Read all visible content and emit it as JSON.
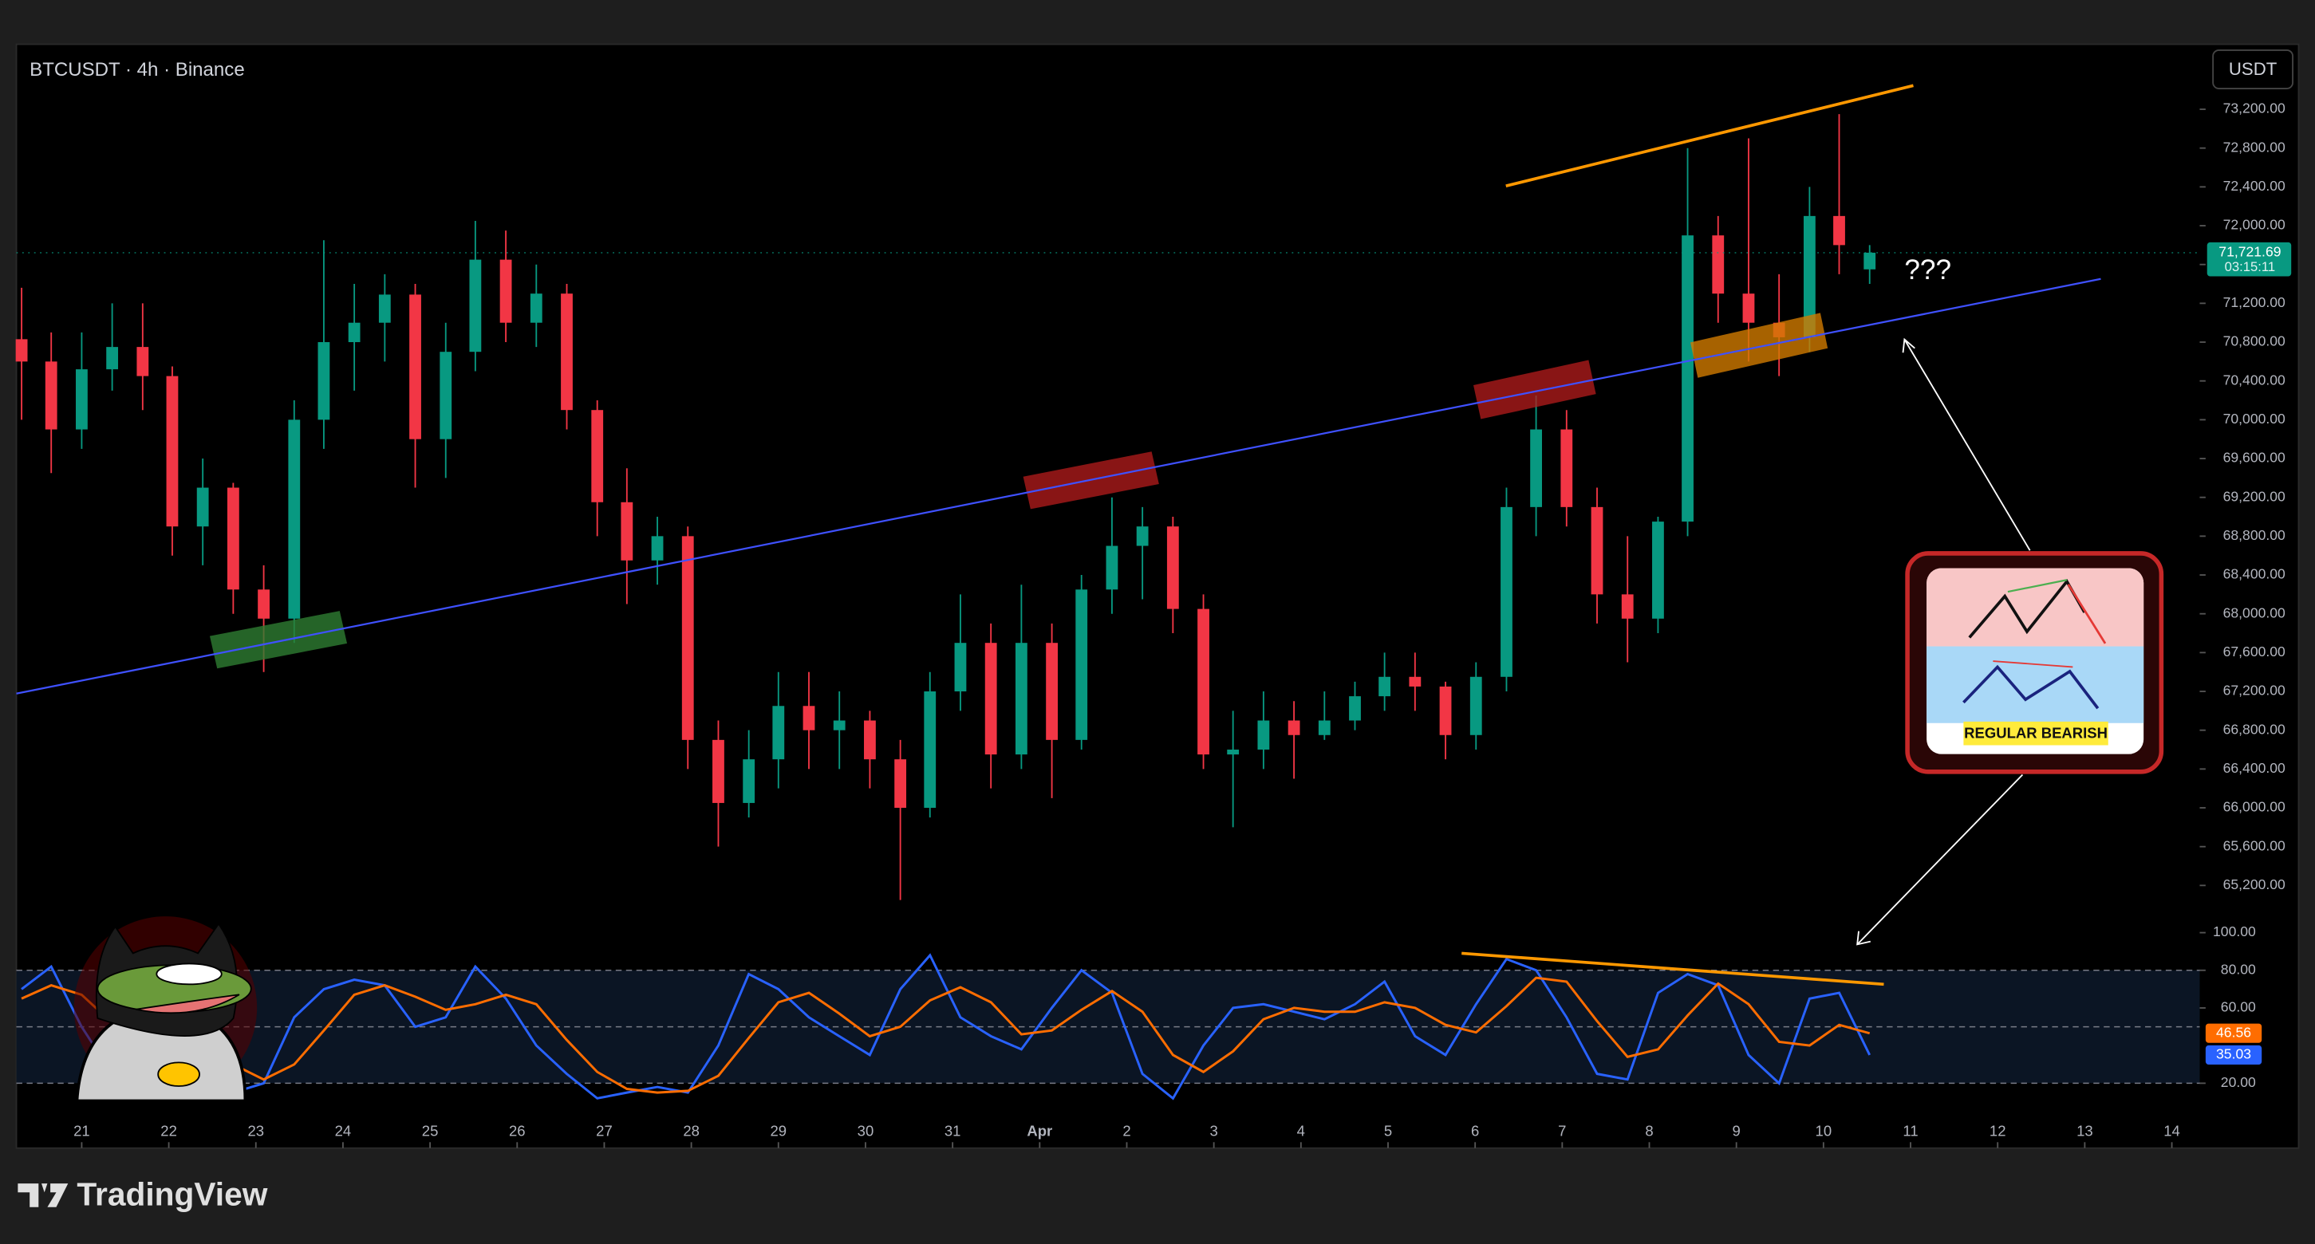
{
  "chart_data": [
    {
      "type": "candlestick",
      "title": "BTCUSDT · 4h · Binance",
      "currency": "USDT",
      "annotation": "???",
      "badge": "REGULAR BEARISH",
      "countdown": "03:15:11",
      "last_price": {
        "value": 71721.69,
        "label": "71,721.69"
      },
      "up_color": "#089981",
      "down_color": "#f23645",
      "x": [
        -0.69,
        -0.35,
        0.0,
        0.35,
        0.7,
        1.04,
        1.39,
        1.74,
        2.09,
        2.44,
        2.78,
        3.13,
        3.48,
        3.83,
        4.18,
        4.52,
        4.87,
        5.22,
        5.57,
        5.92,
        6.26,
        6.61,
        6.96,
        7.31,
        7.66,
        8.0,
        8.35,
        8.7,
        9.05,
        9.4,
        9.74,
        10.09,
        10.44,
        10.79,
        11.14,
        11.48,
        11.83,
        12.18,
        12.53,
        12.88,
        13.22,
        13.57,
        13.92,
        14.27,
        14.62,
        14.96,
        15.31,
        15.66,
        16.01,
        16.36,
        16.7,
        17.05,
        17.4,
        17.75,
        18.1,
        18.44,
        18.79,
        19.14,
        19.49,
        19.84,
        20.18,
        20.53
      ],
      "open": [
        70830,
        70600,
        69900,
        70520,
        70750,
        70450,
        68900,
        69300,
        68250,
        67950,
        70000,
        70800,
        71000,
        71290,
        69800,
        70700,
        71650,
        71000,
        71300,
        70100,
        69150,
        68550,
        68800,
        66700,
        66050,
        66500,
        67050,
        66800,
        66900,
        66500,
        66000,
        67200,
        67700,
        66550,
        67700,
        66700,
        68250,
        68700,
        68900,
        68050,
        66550,
        66600,
        66900,
        66750,
        66900,
        67150,
        67350,
        67250,
        66750,
        67350,
        69100,
        69900,
        69100,
        68200,
        67950,
        68950,
        71900,
        71300,
        71000,
        70850,
        72100,
        71550
      ],
      "high": [
        71360,
        70900,
        70900,
        71200,
        71200,
        70550,
        69600,
        69350,
        68500,
        70200,
        71850,
        71400,
        71500,
        71400,
        71000,
        72050,
        71950,
        71600,
        71400,
        70200,
        69500,
        69000,
        68900,
        66900,
        66800,
        67400,
        67400,
        67200,
        67000,
        66700,
        67400,
        68200,
        67900,
        68300,
        67900,
        68400,
        69200,
        69100,
        69000,
        68200,
        67000,
        67200,
        67100,
        67200,
        67300,
        67600,
        67600,
        67300,
        67500,
        69300,
        70250,
        70100,
        69300,
        68800,
        69000,
        72800,
        72100,
        72900,
        71500,
        72400,
        73150,
        71800
      ],
      "low": [
        70000,
        69450,
        69700,
        70300,
        70100,
        68600,
        68500,
        68000,
        67400,
        67700,
        69700,
        70300,
        70600,
        69300,
        69400,
        70500,
        70800,
        70750,
        69900,
        68800,
        68100,
        68300,
        66400,
        65600,
        65900,
        66200,
        66400,
        66400,
        66200,
        65050,
        65900,
        67000,
        66200,
        66400,
        66100,
        66600,
        68000,
        68150,
        67800,
        66400,
        65800,
        66400,
        66300,
        66700,
        66800,
        67000,
        67000,
        66500,
        66600,
        67200,
        68800,
        68900,
        67900,
        67500,
        67800,
        68800,
        71000,
        70600,
        70450,
        70700,
        71500,
        71400
      ],
      "close": [
        70600,
        69900,
        70520,
        70750,
        70450,
        68900,
        69300,
        68250,
        67950,
        70000,
        70800,
        71000,
        71290,
        69800,
        70700,
        71650,
        71000,
        71300,
        70100,
        69150,
        68550,
        68800,
        66700,
        66050,
        66500,
        67050,
        66800,
        66900,
        66500,
        66000,
        67200,
        67700,
        66550,
        67700,
        66700,
        68250,
        68700,
        68900,
        68050,
        66550,
        66600,
        66900,
        66750,
        66900,
        67150,
        67350,
        67250,
        66750,
        67350,
        69100,
        69900,
        69100,
        68200,
        67950,
        68950,
        71900,
        71300,
        71000,
        70850,
        72100,
        71800,
        71721.69
      ],
      "xlim": [
        -0.75,
        24.32
      ],
      "xticks": [
        {
          "value": 0,
          "label": "21"
        },
        {
          "value": 1,
          "label": "22"
        },
        {
          "value": 2,
          "label": "23"
        },
        {
          "value": 3,
          "label": "24"
        },
        {
          "value": 4,
          "label": "25"
        },
        {
          "value": 5,
          "label": "26"
        },
        {
          "value": 6,
          "label": "27"
        },
        {
          "value": 7,
          "label": "28"
        },
        {
          "value": 8,
          "label": "29"
        },
        {
          "value": 9,
          "label": "30"
        },
        {
          "value": 10,
          "label": "31"
        },
        {
          "value": 11,
          "label": "Apr"
        },
        {
          "value": 12,
          "label": "2"
        },
        {
          "value": 13,
          "label": "3"
        },
        {
          "value": 14,
          "label": "4"
        },
        {
          "value": 15,
          "label": "5"
        },
        {
          "value": 16,
          "label": "6"
        },
        {
          "value": 17,
          "label": "7"
        },
        {
          "value": 18,
          "label": "8"
        },
        {
          "value": 19,
          "label": "9"
        },
        {
          "value": 20,
          "label": "10"
        },
        {
          "value": 21,
          "label": "11"
        },
        {
          "value": 22,
          "label": "12"
        },
        {
          "value": 23,
          "label": "13"
        },
        {
          "value": 24,
          "label": "14"
        }
      ],
      "ylim": [
        64820,
        73870
      ],
      "yticks": [
        {
          "value": 65200,
          "label": "65,200.00"
        },
        {
          "value": 65600,
          "label": "65,600.00"
        },
        {
          "value": 66000,
          "label": "66,000.00"
        },
        {
          "value": 66400,
          "label": "66,400.00"
        },
        {
          "value": 66800,
          "label": "66,800.00"
        },
        {
          "value": 67200,
          "label": "67,200.00"
        },
        {
          "value": 67600,
          "label": "67,600.00"
        },
        {
          "value": 68000,
          "label": "68,000.00"
        },
        {
          "value": 68400,
          "label": "68,400.00"
        },
        {
          "value": 68800,
          "label": "68,800.00"
        },
        {
          "value": 69200,
          "label": "69,200.00"
        },
        {
          "value": 69600,
          "label": "69,600.00"
        },
        {
          "value": 70000,
          "label": "70,000.00"
        },
        {
          "value": 70400,
          "label": "70,400.00"
        },
        {
          "value": 70800,
          "label": "70,800.00"
        },
        {
          "value": 71200,
          "label": "71,200.00"
        },
        {
          "value": 71600,
          "label": "71,600.00"
        },
        {
          "value": 72000,
          "label": "72,000.00"
        },
        {
          "value": 72400,
          "label": "72,400.00"
        },
        {
          "value": 72800,
          "label": "72,800.00"
        },
        {
          "value": 73200,
          "label": "73,200.00"
        }
      ]
    },
    {
      "type": "line",
      "series": [
        {
          "color": "#2962ff",
          "values": [
            70,
            82,
            50,
            25,
            22,
            45,
            30,
            15,
            20,
            55,
            70,
            75,
            72,
            50,
            55,
            82,
            65,
            40,
            25,
            12,
            15,
            18,
            15,
            40,
            78,
            70,
            55,
            45,
            35,
            70,
            88,
            55,
            45,
            38,
            60,
            80,
            68,
            25,
            12,
            40,
            60,
            62,
            58,
            54,
            62,
            74,
            45,
            35,
            62,
            86,
            80,
            55,
            25,
            22,
            68,
            78,
            72,
            35,
            20,
            65,
            68,
            35.03
          ]
        },
        {
          "color": "#ff6d00",
          "values": [
            65,
            72,
            67,
            52,
            32,
            31,
            32,
            30,
            22,
            30,
            48,
            67,
            72,
            66,
            59,
            62,
            67,
            62,
            43,
            26,
            17,
            15,
            16,
            24,
            44,
            63,
            68,
            57,
            45,
            50,
            64,
            71,
            63,
            46,
            48,
            59,
            69,
            58,
            35,
            26,
            37,
            54,
            60,
            58,
            58,
            63,
            60,
            51,
            47,
            61,
            76,
            74,
            53,
            34,
            38,
            56,
            73,
            62,
            42,
            40,
            51,
            46.56
          ]
        }
      ],
      "bands": {
        "upper": 80,
        "middle": 50,
        "lower": 20
      },
      "ylim": [
        7.5,
        105.5
      ],
      "yticks": [
        {
          "value": 20,
          "label": "20.00"
        },
        {
          "value": 60,
          "label": "60.00"
        },
        {
          "value": 80,
          "label": "80.00"
        },
        {
          "value": 100,
          "label": "100.00"
        }
      ]
    }
  ],
  "footer": {
    "brand": "TradingView"
  }
}
